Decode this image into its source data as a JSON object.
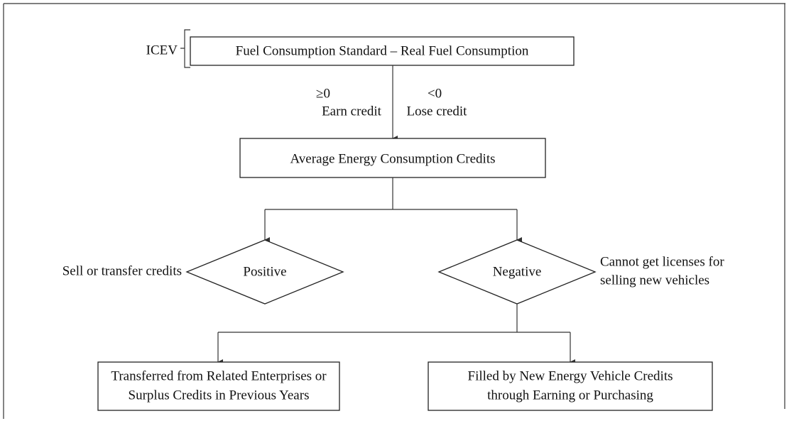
{
  "diagram": {
    "nodes": [
      {
        "id": "top",
        "label": [
          "Fuel Consumption Standard – Real Fuel Consumption"
        ]
      },
      {
        "id": "avg",
        "label": [
          "Average Energy Consumption Credits"
        ]
      },
      {
        "id": "pos",
        "label": [
          "Positive"
        ]
      },
      {
        "id": "neg",
        "label": [
          "Negative"
        ]
      },
      {
        "id": "left",
        "label": [
          "Transferred from Related Enterprises or",
          "Surplus Credits in Previous Years"
        ]
      },
      {
        "id": "right",
        "label": [
          "Filled by New Energy Vehicle Credits",
          "through Earning or Purchasing"
        ]
      }
    ],
    "annotations": {
      "icev": "ICEV",
      "geq": "≥0",
      "earn": "Earn credit",
      "lt": "<0",
      "lose": "Lose credit",
      "sell": "Sell or transfer credits",
      "cannot": [
        "Cannot get licenses for",
        "selling new vehicles"
      ]
    }
  }
}
